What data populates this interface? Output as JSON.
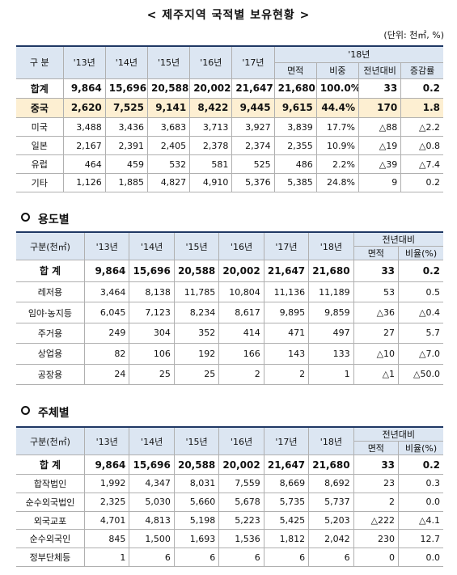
{
  "title": "< 제주지역 국적별 보유현황 >",
  "unit": "(단위: 천㎡, %)",
  "table1": {
    "header": {
      "label": "구 분",
      "years": [
        "'13년",
        "'14년",
        "'15년",
        "'16년",
        "'17년"
      ],
      "group": "'18년",
      "sub": [
        "면적",
        "비중",
        "전년대비",
        "증감률"
      ]
    },
    "rows": [
      [
        "합계",
        "9,864",
        "15,696",
        "20,588",
        "20,002",
        "21,647",
        "21,680",
        "100.0%",
        "33",
        "0.2"
      ],
      [
        "중국",
        "2,620",
        "7,525",
        "9,141",
        "8,422",
        "9,445",
        "9,615",
        "44.4%",
        "170",
        "1.8"
      ],
      [
        "미국",
        "3,488",
        "3,436",
        "3,683",
        "3,713",
        "3,927",
        "3,839",
        "17.7%",
        "△88",
        "△2.2"
      ],
      [
        "일본",
        "2,167",
        "2,391",
        "2,405",
        "2,378",
        "2,374",
        "2,355",
        "10.9%",
        "△19",
        "△0.8"
      ],
      [
        "유럽",
        "464",
        "459",
        "532",
        "581",
        "525",
        "486",
        "2.2%",
        "△39",
        "△7.4"
      ],
      [
        "기타",
        "1,126",
        "1,885",
        "4,827",
        "4,910",
        "5,376",
        "5,385",
        "24.8%",
        "9",
        "0.2"
      ]
    ]
  },
  "section2": {
    "heading": "용도별"
  },
  "table2": {
    "header": {
      "label": "구분(천㎡)",
      "years": [
        "'13년",
        "'14년",
        "'15년",
        "'16년",
        "'17년",
        "'18년"
      ],
      "group": "전년대비",
      "sub": [
        "면적",
        "비율(%)"
      ]
    },
    "rows": [
      [
        "합 계",
        "9,864",
        "15,696",
        "20,588",
        "20,002",
        "21,647",
        "21,680",
        "33",
        "0.2"
      ],
      [
        "레저용",
        "3,464",
        "8,138",
        "11,785",
        "10,804",
        "11,136",
        "11,189",
        "53",
        "0.5"
      ],
      [
        "임야·농지등",
        "6,045",
        "7,123",
        "8,234",
        "8,617",
        "9,895",
        "9,859",
        "△36",
        "△0.4"
      ],
      [
        "주거용",
        "249",
        "304",
        "352",
        "414",
        "471",
        "497",
        "27",
        "5.7"
      ],
      [
        "상업용",
        "82",
        "106",
        "192",
        "166",
        "143",
        "133",
        "△10",
        "△7.0"
      ],
      [
        "공장용",
        "24",
        "25",
        "25",
        "2",
        "2",
        "1",
        "△1",
        "△50.0"
      ]
    ]
  },
  "section3": {
    "heading": "주체별"
  },
  "table3": {
    "header": {
      "label": "구분(천㎡)",
      "years": [
        "'13년",
        "'14년",
        "'15년",
        "'16년",
        "'17년",
        "'18년"
      ],
      "group": "전년대비",
      "sub": [
        "면적",
        "비율(%)"
      ]
    },
    "rows": [
      [
        "합 계",
        "9,864",
        "15,696",
        "20,588",
        "20,002",
        "21,647",
        "21,680",
        "33",
        "0.2"
      ],
      [
        "합작법인",
        "1,992",
        "4,347",
        "8,031",
        "7,559",
        "8,669",
        "8,692",
        "23",
        "0.3"
      ],
      [
        "순수외국법인",
        "2,325",
        "5,030",
        "5,660",
        "5,678",
        "5,735",
        "5,737",
        "2",
        "0.0"
      ],
      [
        "외국교포",
        "4,701",
        "4,813",
        "5,198",
        "5,223",
        "5,425",
        "5,203",
        "△222",
        "△4.1"
      ],
      [
        "순수외국인",
        "845",
        "1,500",
        "1,693",
        "1,536",
        "1,812",
        "2,042",
        "230",
        "12.7"
      ],
      [
        "정부단체등",
        "1",
        "6",
        "6",
        "6",
        "6",
        "6",
        "0",
        "0.0"
      ]
    ]
  }
}
